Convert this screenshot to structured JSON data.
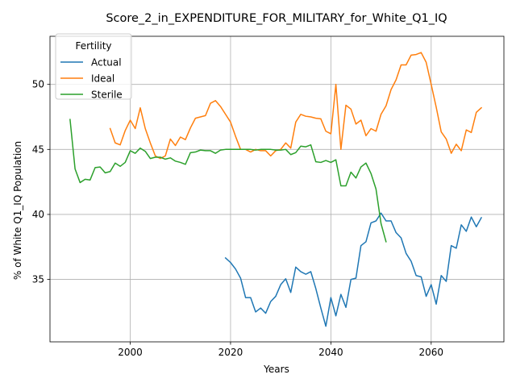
{
  "chart_data": {
    "type": "line",
    "title": "Score_2_in_EXPENDITURE_FOR_MILITARY_for_White_Q1_IQ",
    "xlabel": "Years",
    "ylabel": "% of White Q1_IQ Population",
    "xlim": [
      1984,
      2074.5
    ],
    "ylim": [
      30.2,
      53.7
    ],
    "xticks": [
      2000,
      2020,
      2040,
      2060
    ],
    "yticks": [
      35,
      40,
      45,
      50
    ],
    "grid": true,
    "legend": {
      "title": "Fertility",
      "placement": "top-left"
    },
    "colors": {
      "Actual": "#1f77b4",
      "Ideal": "#ff7f0e",
      "Sterile": "#2ca02c"
    },
    "series": [
      {
        "name": "Actual",
        "x": [
          2019,
          2020,
          2021,
          2022,
          2023,
          2024,
          2025,
          2026,
          2027,
          2028,
          2029,
          2030,
          2031,
          2032,
          2033,
          2034,
          2035,
          2036,
          2037,
          2038,
          2039,
          2040,
          2041,
          2042,
          2043,
          2044,
          2045,
          2046,
          2047,
          2048,
          2049,
          2050,
          2051,
          2052,
          2053,
          2054,
          2055,
          2056,
          2057,
          2058,
          2059,
          2060,
          2061,
          2062,
          2063,
          2064,
          2065,
          2066,
          2067,
          2068,
          2069,
          2070
        ],
        "y": [
          36.65,
          36.3,
          35.8,
          35.1,
          33.6,
          33.6,
          32.5,
          32.8,
          32.4,
          33.3,
          33.7,
          34.6,
          35.05,
          34.0,
          35.95,
          35.6,
          35.4,
          35.6,
          34.3,
          32.8,
          31.4,
          33.6,
          32.2,
          33.85,
          32.85,
          35.0,
          35.1,
          37.6,
          37.9,
          39.35,
          39.5,
          40.1,
          39.5,
          39.5,
          38.6,
          38.2,
          37.0,
          36.4,
          35.3,
          35.2,
          33.7,
          34.6,
          33.1,
          35.3,
          34.85,
          37.6,
          37.4,
          39.2,
          38.7,
          39.8,
          39.05,
          39.75
        ]
      },
      {
        "name": "Ideal",
        "x": [
          1996,
          1997,
          1998,
          1999,
          2000,
          2001,
          2002,
          2003,
          2004,
          2005,
          2006,
          2007,
          2008,
          2009,
          2010,
          2011,
          2012,
          2013,
          2014,
          2015,
          2016,
          2017,
          2018,
          2019,
          2020,
          2021,
          2022,
          2023,
          2024,
          2025,
          2026,
          2027,
          2028,
          2029,
          2030,
          2031,
          2032,
          2033,
          2034,
          2035,
          2036,
          2037,
          2038,
          2039,
          2040,
          2041,
          2042,
          2043,
          2044,
          2045,
          2046,
          2047,
          2048,
          2049,
          2050,
          2051,
          2052,
          2053,
          2054,
          2055,
          2056,
          2057,
          2058,
          2059,
          2060,
          2061,
          2062,
          2063,
          2064,
          2065,
          2066,
          2067,
          2068,
          2069,
          2070
        ],
        "y": [
          46.6,
          45.5,
          45.35,
          46.45,
          47.25,
          46.6,
          48.2,
          46.6,
          45.5,
          44.5,
          44.3,
          44.5,
          45.8,
          45.3,
          45.95,
          45.75,
          46.65,
          47.4,
          47.5,
          47.6,
          48.55,
          48.75,
          48.3,
          47.7,
          47.1,
          46.0,
          45.0,
          45.0,
          44.8,
          45.0,
          44.9,
          44.9,
          44.5,
          44.9,
          45.0,
          45.5,
          45.1,
          47.1,
          47.7,
          47.55,
          47.5,
          47.4,
          47.35,
          46.4,
          46.2,
          50.0,
          45.0,
          48.4,
          48.1,
          46.95,
          47.25,
          46.05,
          46.6,
          46.4,
          47.7,
          48.35,
          49.6,
          50.35,
          51.5,
          51.5,
          52.25,
          52.3,
          52.45,
          51.7,
          50.0,
          48.25,
          46.35,
          45.8,
          44.7,
          45.4,
          44.9,
          46.5,
          46.3,
          47.85,
          48.2
        ]
      },
      {
        "name": "Sterile",
        "x": [
          1988,
          1989,
          1990,
          1991,
          1992,
          1993,
          1994,
          1995,
          1996,
          1997,
          1998,
          1999,
          2000,
          2001,
          2002,
          2003,
          2004,
          2005,
          2006,
          2007,
          2008,
          2009,
          2010,
          2011,
          2012,
          2013,
          2014,
          2015,
          2016,
          2017,
          2018,
          2019,
          2020,
          2021,
          2022,
          2023,
          2024,
          2025,
          2026,
          2027,
          2028,
          2029,
          2030,
          2031,
          2032,
          2033,
          2034,
          2035,
          2036,
          2037,
          2038,
          2039,
          2040,
          2041,
          2042,
          2043,
          2044,
          2045,
          2046,
          2047,
          2048,
          2049,
          2050,
          2051
        ],
        "y": [
          47.3,
          43.5,
          42.45,
          42.7,
          42.65,
          43.6,
          43.65,
          43.2,
          43.3,
          43.95,
          43.7,
          44.0,
          44.9,
          44.7,
          45.1,
          44.85,
          44.3,
          44.4,
          44.4,
          44.25,
          44.35,
          44.1,
          44.0,
          43.85,
          44.75,
          44.8,
          44.95,
          44.9,
          44.9,
          44.7,
          44.95,
          45.0,
          45.0,
          45.0,
          45.0,
          45.0,
          45.0,
          44.95,
          45.0,
          45.0,
          45.0,
          44.95,
          44.95,
          45.0,
          44.6,
          44.75,
          45.25,
          45.2,
          45.35,
          44.05,
          44.0,
          44.15,
          44.0,
          44.2,
          42.2,
          42.2,
          43.25,
          42.8,
          43.65,
          43.95,
          43.15,
          41.95,
          39.3,
          37.9
        ]
      }
    ]
  }
}
